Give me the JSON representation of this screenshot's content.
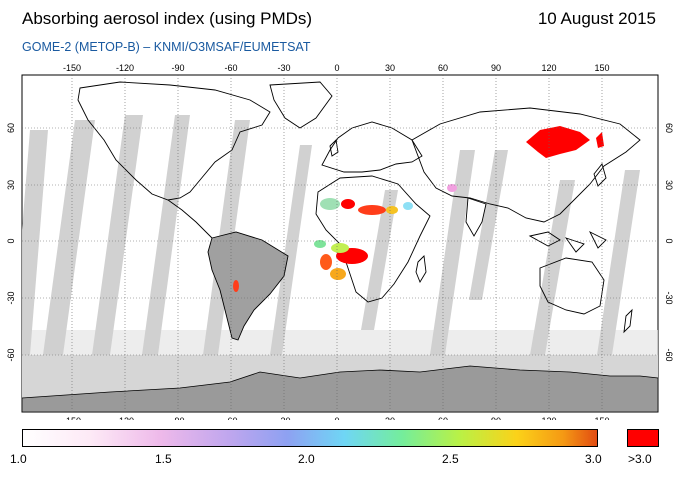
{
  "header": {
    "title": "Absorbing aerosol index (using PMDs)",
    "date": "10 August 2015",
    "subtitle": "GOME-2 (METOP-B)  –   KNMI/O3MSAF/EUMETSAT"
  },
  "map": {
    "lon_ticks": [
      "-150",
      "-120",
      "-90",
      "-60",
      "-30",
      "0",
      "30",
      "60",
      "90",
      "120",
      "150"
    ],
    "lat_ticks": [
      "60",
      "30",
      "0",
      "-30",
      "-60"
    ],
    "colors": {
      "ocean_gap": "#d2d2d2",
      "no_data": "#c8c8c8",
      "coast": "#000000",
      "aerosol_high": "#ff0000"
    }
  },
  "legend": {
    "labels": [
      "1.0",
      "1.5",
      "2.0",
      "2.5",
      "3.0"
    ],
    "overflow_label": ">3.0"
  }
}
